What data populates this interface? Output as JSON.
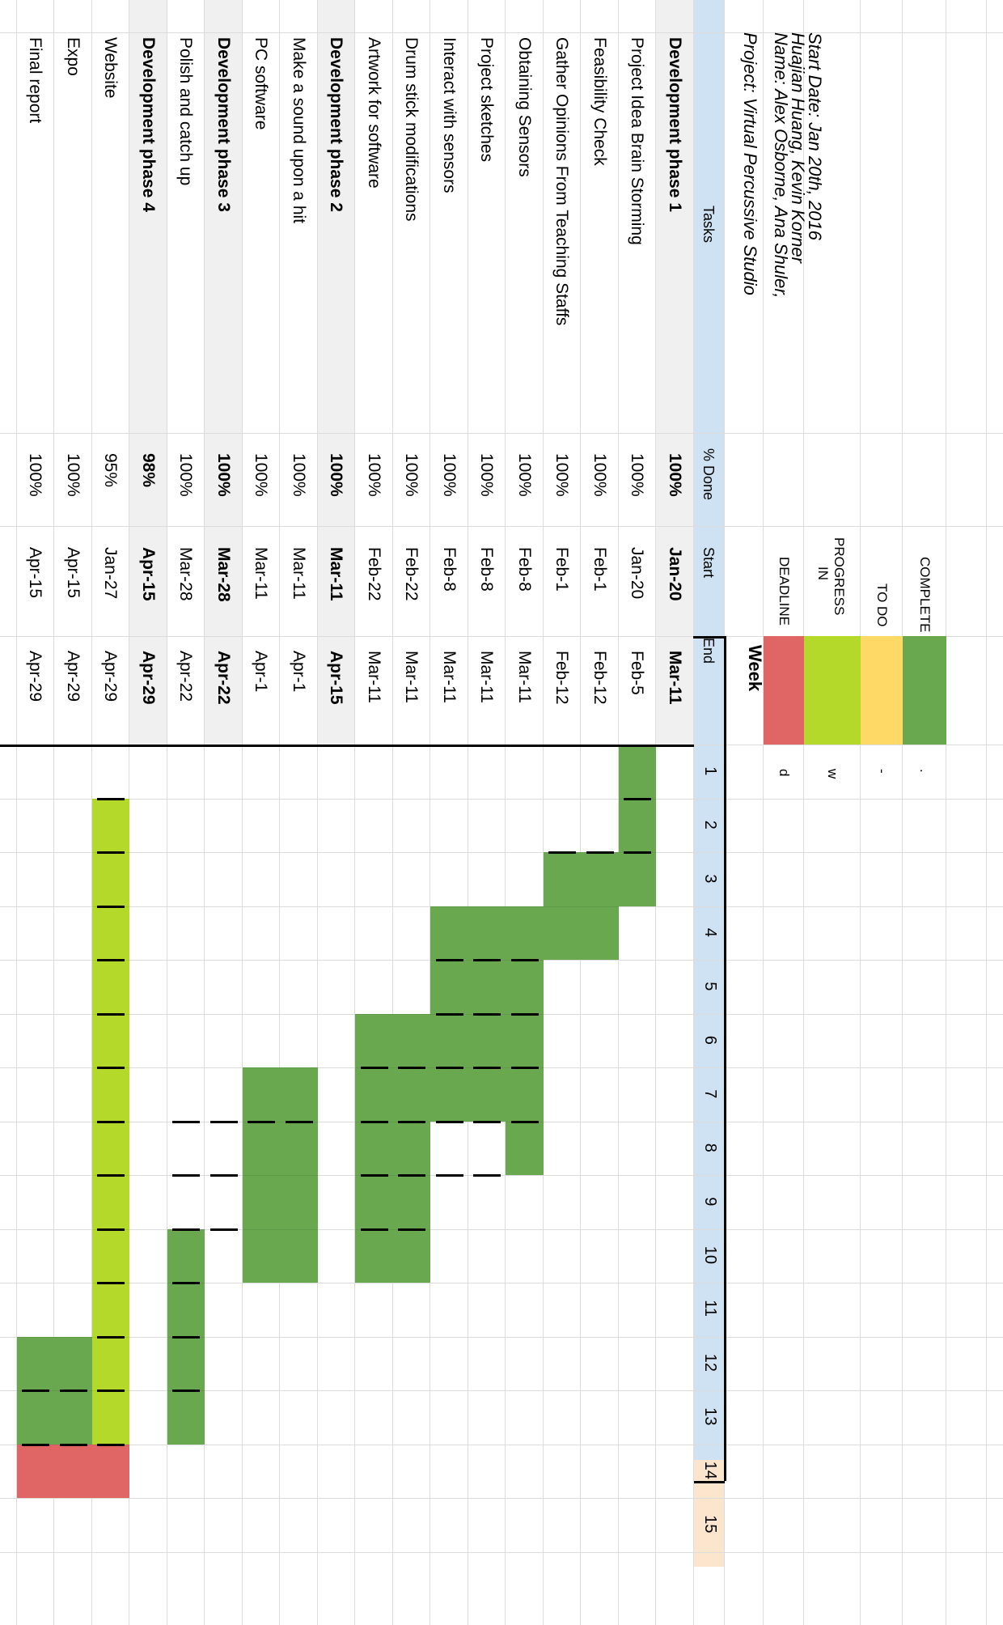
{
  "project": {
    "title_line": "Project: Virtual Percussive Studio",
    "names_line1": "Name: Alex Osborne, Ana Shuler,",
    "names_line2": "Huajian Huang, Kevin Korner",
    "start_line": "Start Date: Jan 20th, 2016"
  },
  "legend": {
    "items": [
      {
        "label": "DEADLINE",
        "code": "d",
        "color": "#e06666"
      },
      {
        "label_line1": "IN",
        "label_line2": "PROGRESS",
        "code": "w",
        "color": "#b5d92b"
      },
      {
        "label": "TO DO",
        "code": "-",
        "color": "#ffd966"
      },
      {
        "label": "COMPLETE",
        "code": ".",
        "color": "#6aa84f"
      }
    ]
  },
  "headers": {
    "tasks": "Tasks",
    "done": "% Done",
    "start": "Start",
    "end": "End",
    "week": "Week",
    "weeks": [
      "1",
      "2",
      "3",
      "4",
      "5",
      "6",
      "7",
      "8",
      "9",
      "10",
      "11",
      "12",
      "13",
      "14",
      "15"
    ]
  },
  "colors": {
    "complete": "#6aa84f",
    "in_progress": "#b5d92b",
    "deadline": "#e06666",
    "header_blue": "#cfe2f3",
    "week14": "#fce5cd",
    "phase_gray": "#f0f0f0"
  },
  "tasks": [
    {
      "name": "Development phase 1",
      "done": "100%",
      "start": "Jan-20",
      "end": "Mar-11",
      "phase": true
    },
    {
      "name": "Project Idea Brain Storming",
      "done": "100%",
      "start": "Jan-20",
      "end": "Feb-5",
      "phase": false
    },
    {
      "name": "Feasibility Check",
      "done": "100%",
      "start": "Feb-1",
      "end": "Feb-12",
      "phase": false
    },
    {
      "name": "Gather Opinions From Teaching Staffs",
      "done": "100%",
      "start": "Feb-1",
      "end": "Feb-12",
      "phase": false
    },
    {
      "name": "Obtaining Sensors",
      "done": "100%",
      "start": "Feb-8",
      "end": "Mar-11",
      "phase": false
    },
    {
      "name": "Project sketches",
      "done": "100%",
      "start": "Feb-8",
      "end": "Mar-11",
      "phase": false
    },
    {
      "name": "Interact with sensors",
      "done": "100%",
      "start": "Feb-8",
      "end": "Mar-11",
      "phase": false
    },
    {
      "name": "Drum stick modifications",
      "done": "100%",
      "start": "Feb-22",
      "end": "Mar-11",
      "phase": false
    },
    {
      "name": "Artwork for software",
      "done": "100%",
      "start": "Feb-22",
      "end": "Mar-11",
      "phase": false
    },
    {
      "name": "Development phase 2",
      "done": "100%",
      "start": "Mar-11",
      "end": "Apr-15",
      "phase": true
    },
    {
      "name": "Make a sound upon a hit",
      "done": "100%",
      "start": "Mar-11",
      "end": "Apr-1",
      "phase": false
    },
    {
      "name": "PC software",
      "done": "100%",
      "start": "Mar-11",
      "end": "Apr-1",
      "phase": false
    },
    {
      "name": "Development phase 3",
      "done": "100%",
      "start": "Mar-28",
      "end": "Apr-22",
      "phase": true
    },
    {
      "name": "Polish and catch up",
      "done": "100%",
      "start": "Mar-28",
      "end": "Apr-22",
      "phase": false
    },
    {
      "name": "Development phase 4",
      "done": "98%",
      "start": "Apr-15",
      "end": "Apr-29",
      "phase": true
    },
    {
      "name": "Website",
      "done": "95%",
      "start": "Jan-27",
      "end": "Apr-29",
      "phase": false
    },
    {
      "name": "Expo",
      "done": "100%",
      "start": "Apr-15",
      "end": "Apr-29",
      "phase": false
    },
    {
      "name": "Final report",
      "done": "100%",
      "start": "Apr-15",
      "end": "Apr-29",
      "phase": false
    }
  ],
  "bars": [
    {
      "row": 1,
      "segments": [
        {
          "from": 1,
          "to": 3,
          "status": "complete"
        }
      ]
    },
    {
      "row": 2,
      "segments": [
        {
          "from": 3,
          "to": 4,
          "status": "complete"
        }
      ]
    },
    {
      "row": 3,
      "segments": [
        {
          "from": 3,
          "to": 4,
          "status": "complete"
        }
      ]
    },
    {
      "row": 4,
      "segments": [
        {
          "from": 4,
          "to": 8,
          "status": "complete"
        }
      ]
    },
    {
      "row": 5,
      "segments": [
        {
          "from": 4,
          "to": 7,
          "status": "complete"
        }
      ]
    },
    {
      "row": 6,
      "segments": [
        {
          "from": 4,
          "to": 7,
          "status": "complete"
        }
      ]
    },
    {
      "row": 7,
      "segments": [
        {
          "from": 6,
          "to": 10,
          "status": "complete"
        }
      ]
    },
    {
      "row": 8,
      "segments": [
        {
          "from": 6,
          "to": 10,
          "status": "complete"
        }
      ]
    },
    {
      "row": 10,
      "segments": [
        {
          "from": 7,
          "to": 10,
          "status": "complete"
        }
      ]
    },
    {
      "row": 11,
      "segments": [
        {
          "from": 7,
          "to": 10,
          "status": "complete"
        }
      ]
    },
    {
      "row": 13,
      "segments": [
        {
          "from": 10,
          "to": 13,
          "status": "complete"
        }
      ]
    },
    {
      "row": 15,
      "segments": [
        {
          "from": 2,
          "to": 13,
          "status": "in_progress"
        },
        {
          "from": 14,
          "to": 14,
          "status": "deadline"
        }
      ]
    },
    {
      "row": 16,
      "segments": [
        {
          "from": 12,
          "to": 13,
          "status": "complete"
        },
        {
          "from": 14,
          "to": 14,
          "status": "deadline"
        }
      ]
    },
    {
      "row": 17,
      "segments": [
        {
          "from": 12,
          "to": 13,
          "status": "complete"
        },
        {
          "from": 14,
          "to": 14,
          "status": "deadline"
        }
      ]
    }
  ],
  "ticks": [
    {
      "row": 1,
      "weeks": [
        2,
        3
      ]
    },
    {
      "row": 2,
      "weeks": [
        3
      ]
    },
    {
      "row": 3,
      "weeks": [
        3
      ]
    },
    {
      "row": 4,
      "weeks": [
        5,
        6,
        7,
        8
      ]
    },
    {
      "row": 5,
      "weeks": [
        5,
        6,
        7,
        8,
        9
      ]
    },
    {
      "row": 6,
      "weeks": [
        5,
        6,
        7,
        8,
        9
      ]
    },
    {
      "row": 7,
      "weeks": [
        7,
        8,
        9,
        10
      ]
    },
    {
      "row": 8,
      "weeks": [
        7,
        8,
        9,
        10
      ]
    },
    {
      "row": 10,
      "weeks": [
        8
      ]
    },
    {
      "row": 11,
      "weeks": [
        8
      ]
    },
    {
      "row": 12,
      "weeks": [
        8,
        9,
        10
      ]
    },
    {
      "row": 13,
      "weeks": [
        8,
        9,
        10,
        11,
        12,
        13
      ]
    },
    {
      "row": 15,
      "weeks": [
        2,
        3,
        4,
        5,
        6,
        7,
        8,
        9,
        10,
        11,
        12,
        13,
        14
      ]
    },
    {
      "row": 16,
      "weeks": [
        13,
        14
      ]
    },
    {
      "row": 17,
      "weeks": [
        13,
        14
      ]
    }
  ]
}
